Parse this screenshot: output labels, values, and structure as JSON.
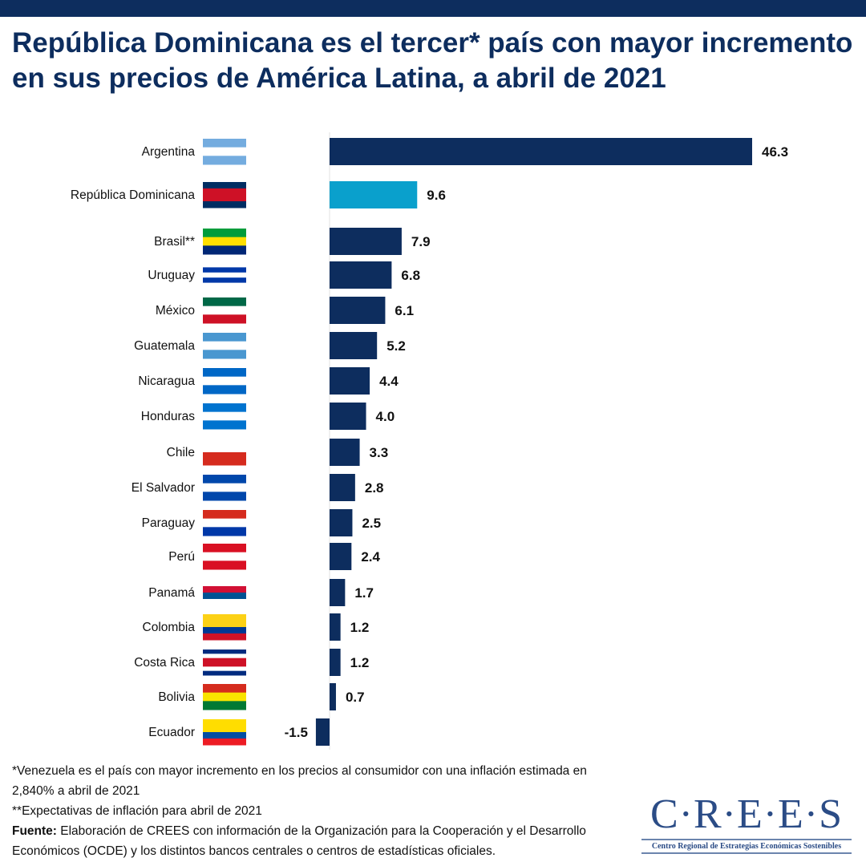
{
  "title": "República Dominicana es el tercer* país con mayor incremento en sus precios de América Latina, a abril de 2021",
  "chart_data": {
    "type": "bar",
    "orientation": "horizontal",
    "title": "República Dominicana es el tercer* país con mayor incremento en sus precios de América Latina, a abril de 2021",
    "xlabel": "",
    "ylabel": "",
    "xlim": [
      -1.5,
      46.3
    ],
    "grid": false,
    "categories": [
      "Argentina",
      "República Dominicana",
      "Brasil**",
      "Uruguay",
      "México",
      "Guatemala",
      "Nicaragua",
      "Honduras",
      "Chile",
      "El Salvador",
      "Paraguay",
      "Perú",
      "Panamá",
      "Colombia",
      "Costa Rica",
      "Bolivia",
      "Ecuador"
    ],
    "values": [
      46.3,
      9.6,
      7.9,
      6.8,
      6.1,
      5.2,
      4.4,
      4.0,
      3.3,
      2.8,
      2.5,
      2.4,
      1.7,
      1.2,
      1.2,
      0.7,
      -1.5
    ],
    "value_labels": [
      "46.3",
      "9.6",
      "7.9",
      "6.8",
      "6.1",
      "5.2",
      "4.4",
      "4.0",
      "3.3",
      "2.8",
      "2.5",
      "2.4",
      "1.7",
      "1.2",
      "1.2",
      "0.7",
      "-1.5"
    ],
    "highlight": "República Dominicana",
    "colors": {
      "default": "#0d2d5e",
      "highlight": "#0aa0cc"
    }
  },
  "flags": [
    [
      "#74acdf",
      "#ffffff",
      "#74acdf"
    ],
    [
      "#002d62",
      "#ce1126",
      "#ce1126",
      "#002d62"
    ],
    [
      "#009c3b",
      "#ffdf00",
      "#002776"
    ],
    [
      "#ffffff",
      "#0038a8",
      "#ffffff",
      "#0038a8",
      "#ffffff"
    ],
    [
      "#006847",
      "#ffffff",
      "#ce1126"
    ],
    [
      "#4997d0",
      "#ffffff",
      "#4997d0"
    ],
    [
      "#0067c6",
      "#ffffff",
      "#0067c6"
    ],
    [
      "#0073cf",
      "#ffffff",
      "#0073cf"
    ],
    [
      "#ffffff",
      "#d52b1e"
    ],
    [
      "#0047ab",
      "#ffffff",
      "#0047ab"
    ],
    [
      "#d52b1e",
      "#ffffff",
      "#0038a8"
    ],
    [
      "#d91023",
      "#ffffff",
      "#d91023"
    ],
    [
      "#ffffff",
      "#d21034",
      "#005293",
      "#ffffff"
    ],
    [
      "#fcd116",
      "#fcd116",
      "#003893",
      "#ce1126"
    ],
    [
      "#002b7f",
      "#ffffff",
      "#ce1126",
      "#ce1126",
      "#ffffff",
      "#002b7f"
    ],
    [
      "#d52b1e",
      "#f9e300",
      "#007934"
    ],
    [
      "#ffdd00",
      "#ffdd00",
      "#034ea2",
      "#ed1c24"
    ]
  ],
  "footnotes": {
    "note1": "*Venezuela es el país con mayor incremento en los precios al consumidor con una inflación estimada en 2,840% a abril de 2021",
    "note2": "**Expectativas de inflación para abril de 2021",
    "source_label": "Fuente:",
    "source_text": " Elaboración de CREES con información de la Organización para la Cooperación y el Desarrollo Económicos (OCDE) y los distintos bancos centrales o centros de estadísticas oficiales."
  },
  "logo": {
    "name": "C·R·E·E·S",
    "subtitle": "Centro Regional de Estrategias Económicas Sostenibles"
  }
}
